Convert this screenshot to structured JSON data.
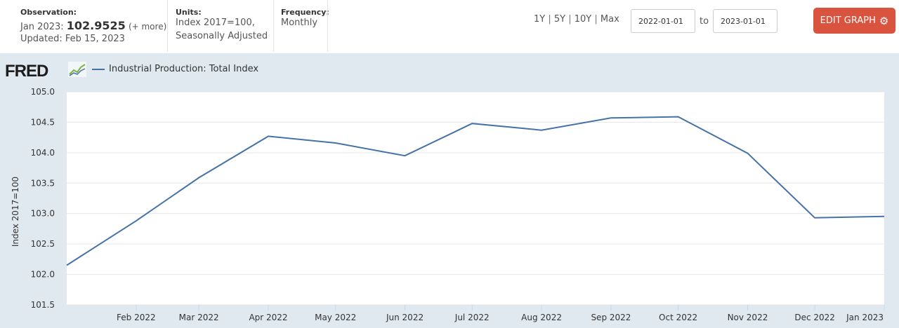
{
  "header": {
    "observation": {
      "label": "Observation:",
      "date": "Jan 2023:",
      "value": "102.9525",
      "more": "(+ more)",
      "updated": "Updated: Feb 15, 2023"
    },
    "units": {
      "label": "Units:",
      "line1": "Index 2017=100,",
      "line2": "Seasonally Adjusted"
    },
    "frequency": {
      "label": "Frequency:",
      "value": "Monthly"
    },
    "ranges": [
      "1Y",
      "5Y",
      "10Y",
      "Max"
    ],
    "date_from": "2022-01-01",
    "date_to": "2023-01-01",
    "to_label": "to",
    "edit_button": "EDIT GRAPH"
  },
  "logo_text": "FRED",
  "colors": {
    "series": "#4572a7",
    "plot_background": "#ffffff",
    "chart_background": "#e1e9f0",
    "edit_button": "#d9533f"
  },
  "chart_data": {
    "type": "line",
    "ylabel": "Index 2017=100",
    "ylim": [
      101.5,
      105.0
    ],
    "yticks": [
      "105.0",
      "104.5",
      "104.0",
      "103.5",
      "103.0",
      "102.5",
      "102.0",
      "101.5"
    ],
    "x": [
      "2022-01-01",
      "2022-02-01",
      "2022-03-01",
      "2022-04-01",
      "2022-05-01",
      "2022-06-01",
      "2022-07-01",
      "2022-08-01",
      "2022-09-01",
      "2022-10-01",
      "2022-11-01",
      "2022-12-01",
      "2023-01-01"
    ],
    "xtick_labels": [
      "Feb 2022",
      "Mar 2022",
      "Apr 2022",
      "May 2022",
      "Jun 2022",
      "Jul 2022",
      "Aug 2022",
      "Sep 2022",
      "Oct 2022",
      "Nov 2022",
      "Dec 2022",
      "Jan 2023"
    ],
    "series": [
      {
        "name": "Industrial Production: Total Index",
        "values": [
          102.15,
          102.88,
          103.59,
          104.27,
          104.16,
          103.95,
          104.48,
          104.37,
          104.57,
          104.59,
          103.99,
          102.93,
          102.9525
        ]
      }
    ],
    "grid": true
  }
}
